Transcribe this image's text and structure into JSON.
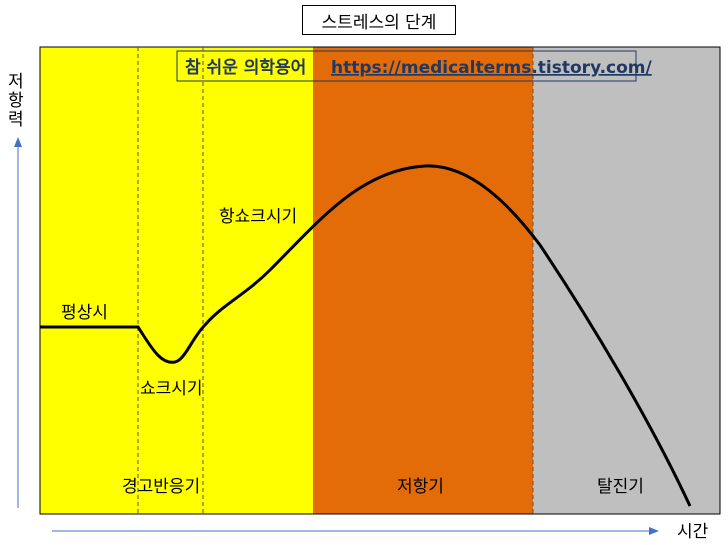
{
  "title": "스트레스의 단계",
  "banner": {
    "text": "참 쉬운 의학용어",
    "link": "https://medicalterms.tistory.com/"
  },
  "axes": {
    "y_label_chars": [
      "저",
      "항",
      "력"
    ],
    "x_label": "시간"
  },
  "phases": [
    {
      "name": "경고반응기",
      "color": "#ffff00"
    },
    {
      "name": "저항기",
      "color": "#e36c09"
    },
    {
      "name": "탈진기",
      "color": "#bfbfbf"
    }
  ],
  "annotations": {
    "baseline": "평상시",
    "shock": "쇼크시기",
    "antishock": "항쇼크시기"
  },
  "colors": {
    "axis_arrow": "#4472c4",
    "curve": "#000000",
    "banner_border": "#1f3864"
  }
}
